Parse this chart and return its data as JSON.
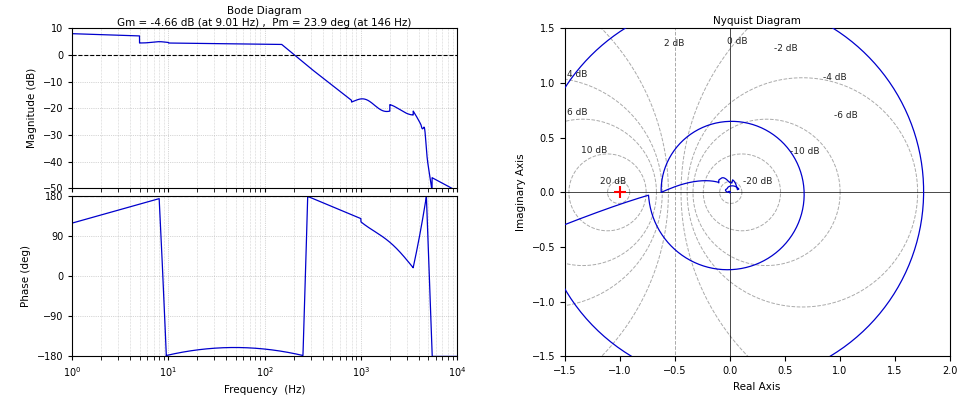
{
  "bode_title": "Bode Diagram",
  "bode_subtitle": "Gm = -4.66 dB (at 9.01 Hz) ,  Pm = 23.9 deg (at 146 Hz)",
  "nyquist_title": "Nyquist Diagram",
  "mag_ylabel": "Magnitude (dB)",
  "phase_ylabel": "Phase (deg)",
  "freq_xlabel": "Frequency  (Hz)",
  "nyquist_xlabel": "Real Axis",
  "nyquist_ylabel": "Imaginary Axis",
  "mag_ylim": [
    -50,
    10
  ],
  "phase_ylim": [
    -180,
    180
  ],
  "freq_xlim": [
    1.0,
    10000.0
  ],
  "nyquist_xlim": [
    -1.5,
    2.0
  ],
  "nyquist_ylim": [
    -1.5,
    1.5
  ],
  "line_color": "#0000CD",
  "grid_color": "#B0B0B0",
  "bg_color": "#FFFFFF",
  "dB_labels": [
    "2 dB",
    "0 dB",
    "-2 dB",
    "4 dB",
    "-4 dB",
    "6 dB",
    "-6 dB",
    "10 dB",
    "-10 dB",
    "20 dB",
    "-20 dB"
  ],
  "dB_values": [
    2,
    0,
    -2,
    4,
    -4,
    6,
    -6,
    10,
    -10,
    20,
    -20
  ]
}
